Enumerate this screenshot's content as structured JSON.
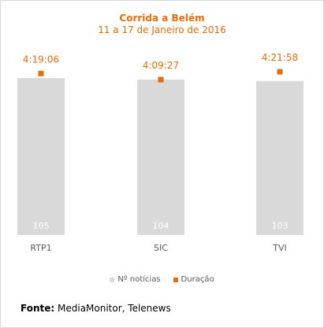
{
  "chart_data": {
    "type": "bar",
    "title": "Corrida a Belém",
    "subtitle": "11 a 17 de Janeiro de 2016",
    "categories": [
      "RTP1",
      "SIC",
      "TVI"
    ],
    "series": [
      {
        "name": "Nº notícias",
        "type": "bar",
        "values": [
          105,
          104,
          103
        ],
        "color": "#d9d9d9"
      },
      {
        "name": "Duração",
        "type": "point",
        "values": [
          "4:19:06",
          "4:09:27",
          "4:21:58"
        ],
        "seconds": [
          15546,
          14967,
          15718
        ],
        "color": "#e46c0a"
      }
    ],
    "legend_position": "bottom",
    "grid": false
  },
  "source": {
    "label": "Fonte:",
    "text": "MediaMonitor, Telenews"
  }
}
